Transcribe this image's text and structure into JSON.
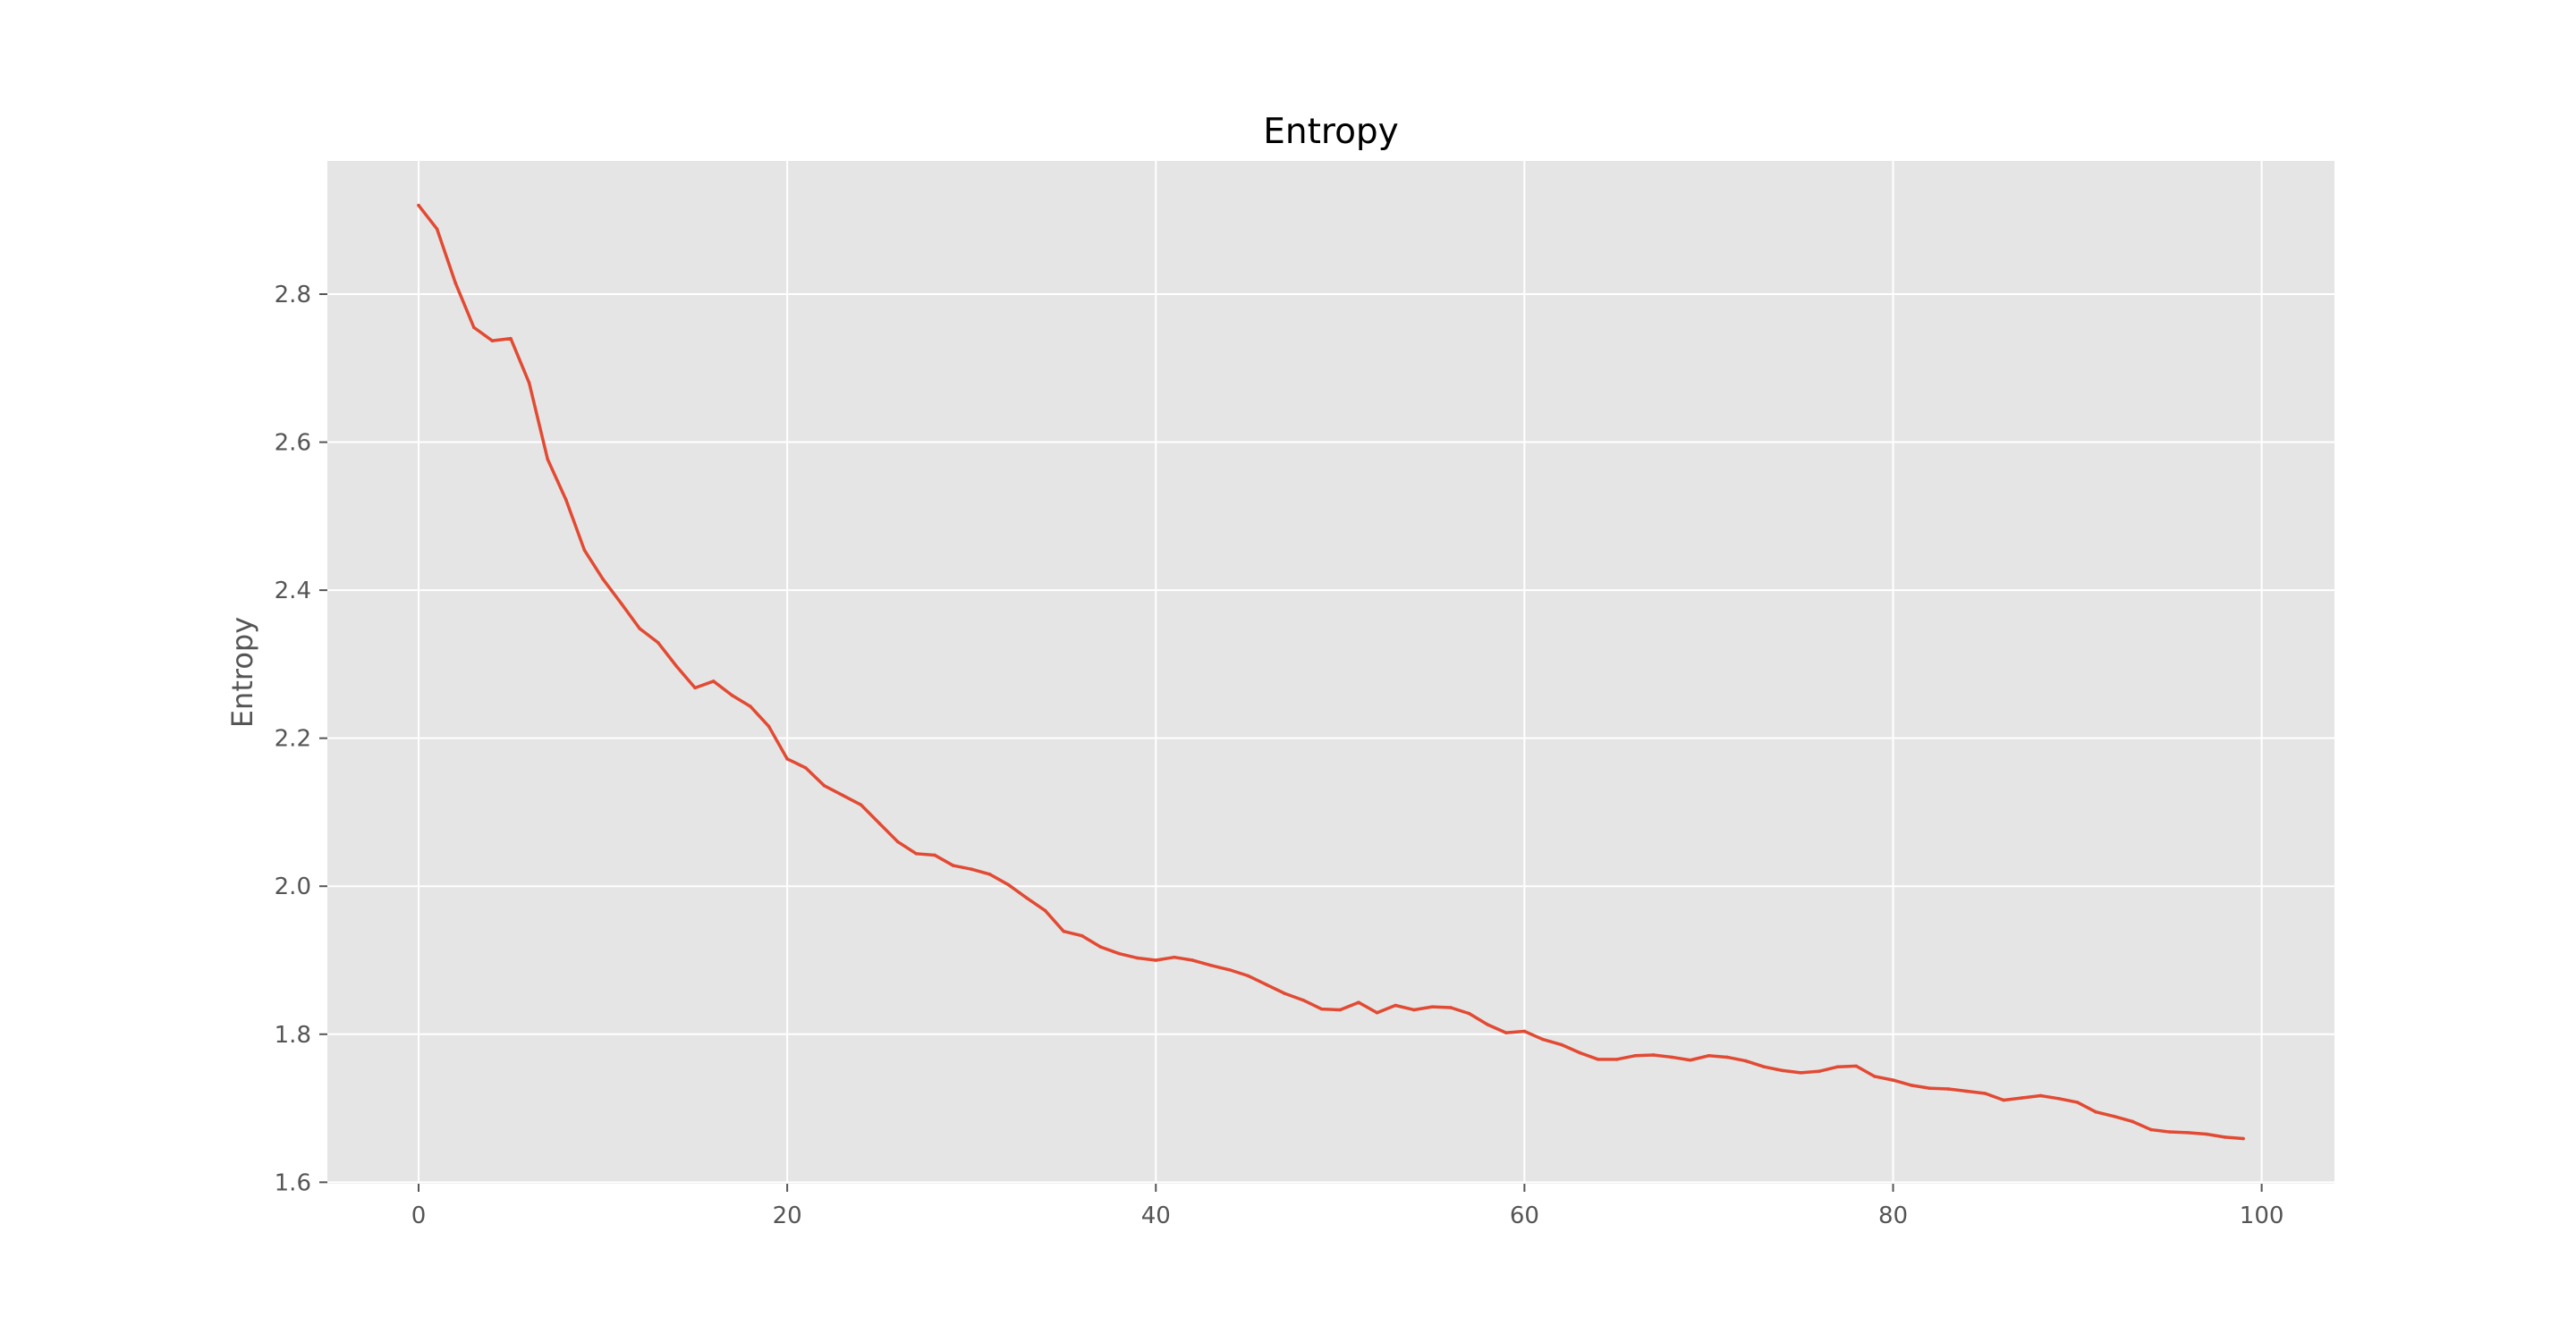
{
  "chart_data": {
    "type": "line",
    "title": "Entropy",
    "xlabel": "",
    "ylabel": "Entropy",
    "xlim": [
      -4.95,
      103.95
    ],
    "ylim": [
      1.598,
      2.98
    ],
    "xticks": [
      "0",
      "20",
      "40",
      "60",
      "80",
      "100"
    ],
    "yticks": [
      "1.6",
      "1.8",
      "2.0",
      "2.2",
      "2.4",
      "2.6",
      "2.8"
    ],
    "grid": true,
    "legend": "none",
    "series": [
      {
        "color": "#E24A33",
        "x": [
          0,
          1,
          2,
          3,
          4,
          5,
          6,
          7,
          8,
          9,
          10,
          11,
          12,
          13,
          14,
          15,
          16,
          17,
          18,
          19,
          20,
          21,
          22,
          23,
          24,
          25,
          26,
          27,
          28,
          29,
          30,
          31,
          32,
          33,
          34,
          35,
          36,
          37,
          38,
          39,
          40,
          41,
          42,
          43,
          44,
          45,
          46,
          47,
          48,
          49,
          50,
          51,
          52,
          53,
          54,
          55,
          56,
          57,
          58,
          59,
          60,
          61,
          62,
          63,
          64,
          65,
          66,
          67,
          68,
          69,
          70,
          71,
          72,
          73,
          74,
          75,
          76,
          77,
          78,
          79,
          80,
          81,
          82,
          83,
          84,
          85,
          86,
          87,
          88,
          89,
          90,
          91,
          92,
          93,
          94,
          95,
          96,
          97,
          98,
          99
        ],
        "values": [
          2.92,
          2.888,
          2.815,
          2.755,
          2.737,
          2.74,
          2.68,
          2.577,
          2.522,
          2.454,
          2.415,
          2.382,
          2.348,
          2.329,
          2.297,
          2.268,
          2.277,
          2.258,
          2.243,
          2.216,
          2.172,
          2.16,
          2.136,
          2.123,
          2.11,
          2.085,
          2.06,
          2.044,
          2.042,
          2.028,
          2.023,
          2.016,
          2.002,
          1.984,
          1.967,
          1.939,
          1.933,
          1.918,
          1.909,
          1.903,
          1.9,
          1.904,
          1.9,
          1.893,
          1.887,
          1.879,
          1.867,
          1.855,
          1.846,
          1.834,
          1.833,
          1.843,
          1.829,
          1.839,
          1.833,
          1.837,
          1.836,
          1.828,
          1.813,
          1.802,
          1.804,
          1.793,
          1.786,
          1.775,
          1.766,
          1.766,
          1.771,
          1.772,
          1.769,
          1.765,
          1.771,
          1.769,
          1.764,
          1.756,
          1.751,
          1.748,
          1.75,
          1.756,
          1.757,
          1.743,
          1.738,
          1.731,
          1.727,
          1.726,
          1.723,
          1.72,
          1.711,
          1.714,
          1.717,
          1.713,
          1.708,
          1.695,
          1.689,
          1.682,
          1.671,
          1.668,
          1.667,
          1.665,
          1.661,
          1.659
        ]
      }
    ]
  }
}
